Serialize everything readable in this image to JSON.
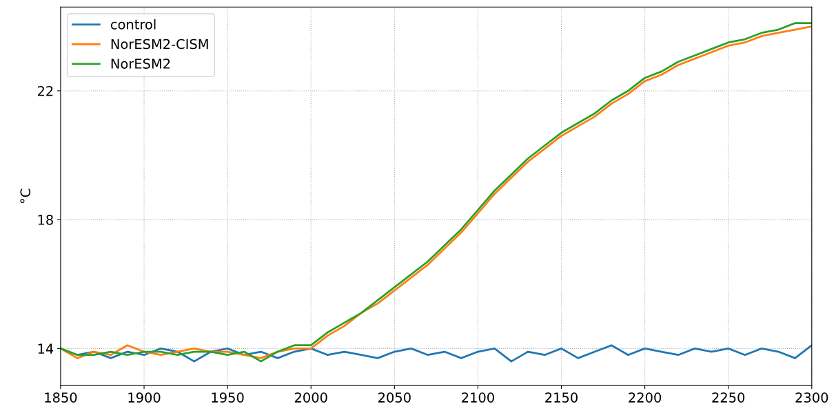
{
  "chart_data": {
    "type": "line",
    "ylabel": "°C",
    "x": [
      1850,
      1860,
      1870,
      1880,
      1890,
      1900,
      1910,
      1920,
      1930,
      1940,
      1950,
      1960,
      1970,
      1980,
      1990,
      2000,
      2010,
      2020,
      2030,
      2040,
      2050,
      2060,
      2070,
      2080,
      2090,
      2100,
      2110,
      2120,
      2130,
      2140,
      2150,
      2160,
      2170,
      2180,
      2190,
      2200,
      2210,
      2220,
      2230,
      2240,
      2250,
      2260,
      2270,
      2280,
      2290,
      2300
    ],
    "series": [
      {
        "name": "control",
        "color": "#1f77b4",
        "values": [
          14.0,
          13.8,
          13.9,
          13.7,
          13.9,
          13.8,
          14.0,
          13.9,
          13.6,
          13.9,
          14.0,
          13.8,
          13.9,
          13.7,
          13.9,
          14.0,
          13.8,
          13.9,
          13.8,
          13.7,
          13.9,
          14.0,
          13.8,
          13.9,
          13.7,
          13.9,
          14.0,
          13.6,
          13.9,
          13.8,
          14.0,
          13.7,
          13.9,
          14.1,
          13.8,
          14.0,
          13.9,
          13.8,
          14.0,
          13.9,
          14.0,
          13.8,
          14.0,
          13.9,
          13.7,
          14.1
        ]
      },
      {
        "name": "NorESM2-CISM",
        "color": "#ff7f0e",
        "values": [
          14.0,
          13.7,
          13.9,
          13.8,
          14.1,
          13.9,
          13.8,
          13.9,
          14.0,
          13.9,
          13.9,
          13.8,
          13.7,
          13.9,
          14.0,
          14.0,
          14.4,
          14.7,
          15.1,
          15.4,
          15.8,
          16.2,
          16.6,
          17.1,
          17.6,
          18.2,
          18.8,
          19.3,
          19.8,
          20.2,
          20.6,
          20.9,
          21.2,
          21.6,
          21.9,
          22.3,
          22.5,
          22.8,
          23.0,
          23.2,
          23.4,
          23.5,
          23.7,
          23.8,
          23.9,
          24.0
        ]
      },
      {
        "name": "NorESM2",
        "color": "#2ca02c",
        "values": [
          14.0,
          13.8,
          13.8,
          13.9,
          13.8,
          13.9,
          13.9,
          13.8,
          13.9,
          13.9,
          13.8,
          13.9,
          13.6,
          13.9,
          14.1,
          14.1,
          14.5,
          14.8,
          15.1,
          15.5,
          15.9,
          16.3,
          16.7,
          17.2,
          17.7,
          18.3,
          18.9,
          19.4,
          19.9,
          20.3,
          20.7,
          21.0,
          21.3,
          21.7,
          22.0,
          22.4,
          22.6,
          22.9,
          23.1,
          23.3,
          23.5,
          23.6,
          23.8,
          23.9,
          24.1,
          24.1
        ]
      }
    ],
    "xlim": [
      1850,
      2300
    ],
    "xticks": [
      1850,
      1900,
      1950,
      2000,
      2050,
      2100,
      2150,
      2200,
      2250,
      2300
    ],
    "ylim": [
      12.85,
      24.6
    ],
    "yticks": [
      14,
      18,
      22
    ],
    "grid": true,
    "legend": "top left"
  }
}
